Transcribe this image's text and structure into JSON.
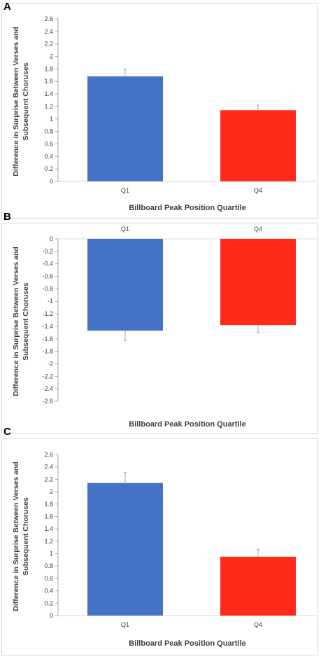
{
  "colors": {
    "q1": "#4472c4",
    "q4": "#ff2a1a",
    "axis": "#a6a6a6",
    "errorbar": "#a6a6a6"
  },
  "panels": [
    {
      "letter": "A"
    },
    {
      "letter": "B"
    },
    {
      "letter": "C"
    }
  ],
  "chart_data": [
    {
      "type": "bar",
      "categories": [
        "Q1",
        "Q4"
      ],
      "values": [
        1.68,
        1.14
      ],
      "errors": [
        0.12,
        0.08
      ],
      "ylim": [
        0,
        2.6
      ],
      "yticks": [
        "0",
        "0.2",
        "0.4",
        "0.6",
        "0.8",
        "1",
        "1.2",
        "1.4",
        "1.6",
        "1.8",
        "2",
        "2.2",
        "2.4",
        "2.6"
      ],
      "ylabel_line1": "Difference in Surprise Between Verses and",
      "ylabel_line2": "Subsequent Choruses",
      "xlabel": "Billboard Peak Position Quartile",
      "category_labels_at": "bottom",
      "grid": false
    },
    {
      "type": "bar",
      "categories": [
        "Q1",
        "Q4"
      ],
      "values": [
        -1.47,
        -1.38
      ],
      "errors": [
        0.16,
        0.12
      ],
      "ylim": [
        -2.6,
        0
      ],
      "yticks": [
        "0",
        "-0.2",
        "-0.4",
        "-0.6",
        "-0.8",
        "-1",
        "-1.2",
        "-1.4",
        "-1.6",
        "-1.8",
        "-2",
        "-2.2",
        "-2.4",
        "-2.6"
      ],
      "ylabel_line1": "Difference in Surprise Between Verses and",
      "ylabel_line2": "Subsequent Choruses",
      "xlabel": "Billboard Peak Position Quartile",
      "category_labels_at": "top",
      "grid": false
    },
    {
      "type": "bar",
      "categories": [
        "Q1",
        "Q4"
      ],
      "values": [
        2.14,
        0.95
      ],
      "errors": [
        0.17,
        0.12
      ],
      "ylim": [
        0,
        2.6
      ],
      "yticks": [
        "0",
        "0.2",
        "0.4",
        "0.6",
        "0.8",
        "1",
        "1.2",
        "1.4",
        "1.6",
        "1.8",
        "2",
        "2.2",
        "2.4",
        "2.6"
      ],
      "ylabel_line1": "Difference in Surprise Between Verses and",
      "ylabel_line2": "Subsequent Choruses",
      "xlabel": "Billboard Peak Position Quartile",
      "category_labels_at": "bottom",
      "grid": false
    }
  ]
}
